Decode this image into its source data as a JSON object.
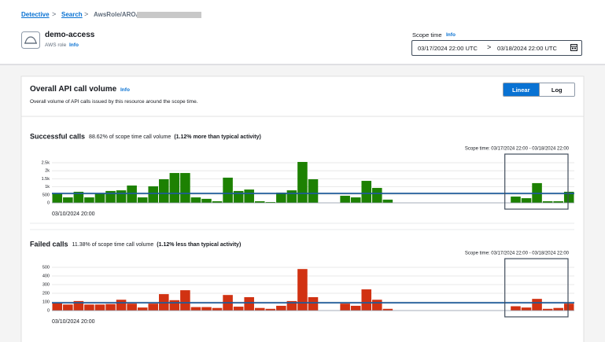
{
  "breadcrumb": [
    "Detective",
    "Search",
    "AwsRole/AROA"
  ],
  "header": {
    "title": "demo-access",
    "subtitle": "AWS role",
    "info": "Info"
  },
  "scope": {
    "label": "Scope time",
    "info": "Info",
    "start": "03/17/2024 22:00 UTC",
    "end": "03/18/2024 22:00 UTC"
  },
  "panel": {
    "title": "Overall API call volume",
    "info": "Info",
    "description": "Overall volume of API calls issued by this resource around the scope time.",
    "buttons": [
      "Linear",
      "Log"
    ],
    "selected": "Linear"
  },
  "chart_data": [
    {
      "type": "bar",
      "title": "Successful calls",
      "subtitle": "88.62% of scope time call volume",
      "note": "(1.12% more than typical activity)",
      "scope_text": "Scope time: 03/17/2024 22:00 - 03/18/2024 22:00",
      "categories": [
        "03/10/2024 20:00",
        null,
        null,
        null,
        null,
        null,
        null,
        null,
        null,
        null,
        null,
        null,
        null,
        null,
        null,
        null,
        null,
        null,
        null,
        null,
        null,
        null,
        null,
        null,
        null,
        null,
        null,
        null,
        null,
        null,
        null,
        null,
        null,
        null,
        null,
        null,
        null,
        null,
        null,
        null,
        null,
        null,
        null,
        null,
        null,
        null,
        null,
        null,
        null
      ],
      "values": [
        590,
        340,
        690,
        340,
        590,
        740,
        780,
        1080,
        340,
        1030,
        1470,
        1860,
        1860,
        340,
        250,
        100,
        1570,
        740,
        830,
        100,
        50,
        640,
        780,
        2550,
        1470,
        0,
        0,
        440,
        340,
        1370,
        930,
        200,
        0,
        0,
        0,
        0,
        0,
        0,
        0,
        0,
        0,
        0,
        0,
        390,
        290,
        1230,
        100,
        100,
        690
      ],
      "average": 590,
      "color": "#1d8102",
      "ylim": [
        0,
        2500
      ],
      "yticks": [
        0,
        500,
        {
          "value": 1000,
          "label": "1k"
        },
        {
          "value": 1500,
          "label": "1.5k"
        },
        {
          "value": 2000,
          "label": "2k"
        },
        {
          "value": 2500,
          "label": "2.5k"
        }
      ],
      "grid": true
    },
    {
      "type": "bar",
      "title": "Failed calls",
      "subtitle": "11.38% of scope time call volume",
      "note": "(1.12% less than typical activity)",
      "scope_text": "Scope time: 03/17/2024 22:00 - 03/18/2024 22:00",
      "categories": [
        "03/10/2024 20:00",
        null,
        null,
        null,
        null,
        null,
        null,
        null,
        null,
        null,
        null,
        null,
        null,
        null,
        null,
        null,
        null,
        null,
        null,
        null,
        null,
        null,
        null,
        null,
        null,
        null,
        null,
        null,
        null,
        null,
        null,
        null,
        null,
        null,
        null,
        null,
        null,
        null,
        null,
        null,
        null,
        null,
        null,
        null,
        null,
        null,
        null,
        null,
        null
      ],
      "values": [
        90,
        70,
        110,
        70,
        70,
        75,
        125,
        80,
        35,
        80,
        190,
        120,
        235,
        40,
        40,
        30,
        180,
        45,
        155,
        30,
        20,
        55,
        110,
        480,
        155,
        0,
        0,
        80,
        55,
        245,
        125,
        20,
        0,
        0,
        0,
        0,
        0,
        0,
        0,
        0,
        0,
        0,
        0,
        50,
        35,
        135,
        20,
        30,
        80
      ],
      "average": 90,
      "color": "#d13212",
      "ylim": [
        0,
        500
      ],
      "yticks": [
        0,
        100,
        200,
        300,
        400,
        500
      ],
      "grid": true
    }
  ]
}
